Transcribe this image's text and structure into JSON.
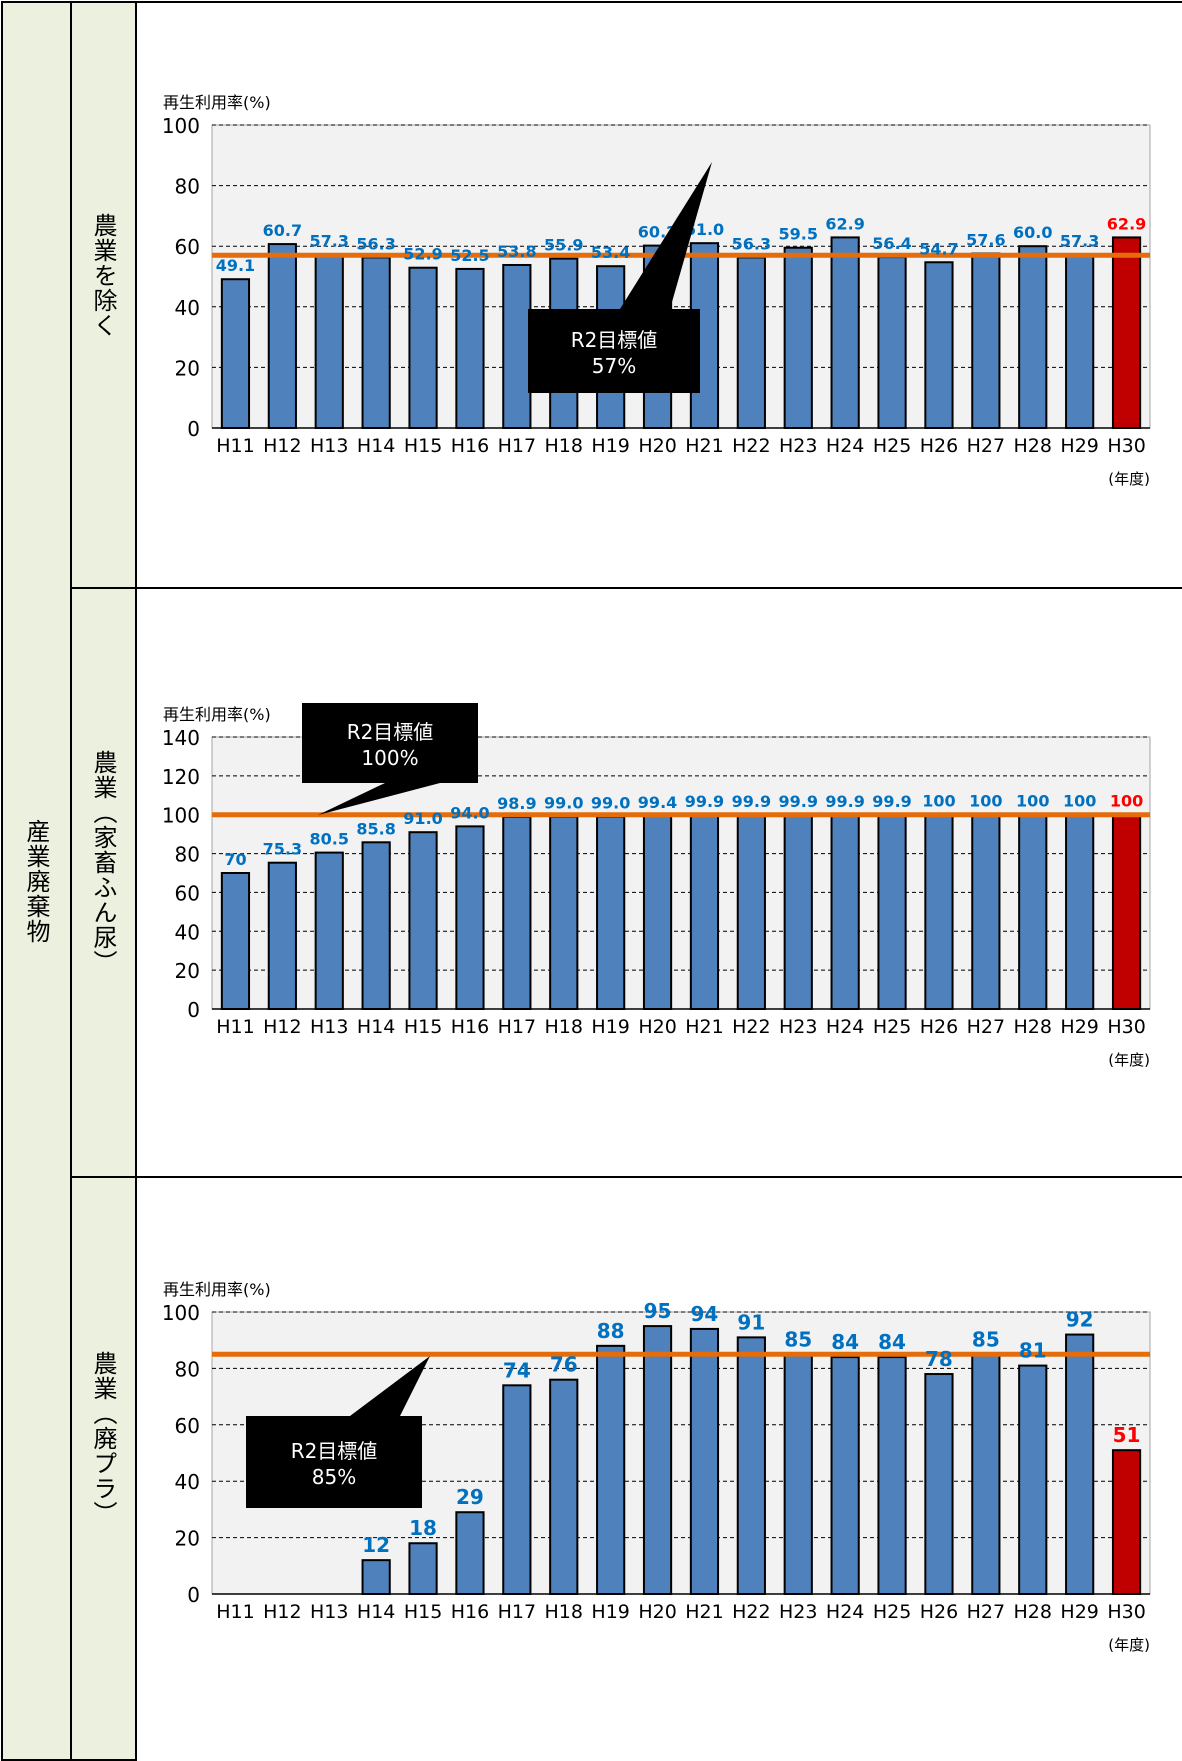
{
  "table": {
    "category_label": "産業廃棄物",
    "rows": [
      {
        "label": "農業を除く"
      },
      {
        "label": "農業（家畜ふん尿）"
      },
      {
        "label": "農業（廃プラ）"
      }
    ]
  },
  "colors": {
    "bar": "#4f81bd",
    "bar_last": "#c00000",
    "target": "#e46c0a",
    "label": "#0070c0",
    "label_last": "#ff0000",
    "plot_bg": "#f2f2f2"
  },
  "chart_data": [
    {
      "type": "bar",
      "ylabel": "再生利用率(%)",
      "xunit": "(年度)",
      "categories": [
        "H11",
        "H12",
        "H13",
        "H14",
        "H15",
        "H16",
        "H17",
        "H18",
        "H19",
        "H20",
        "H21",
        "H22",
        "H23",
        "H24",
        "H25",
        "H26",
        "H27",
        "H28",
        "H29",
        "H30"
      ],
      "values": [
        49.1,
        60.7,
        57.3,
        56.3,
        52.9,
        52.5,
        53.8,
        55.9,
        53.4,
        60.2,
        61.0,
        56.3,
        59.5,
        62.9,
        56.4,
        54.7,
        57.6,
        60.0,
        57.3,
        62.9
      ],
      "value_labels": [
        "49.1",
        "60.7",
        "57.3",
        "56.3",
        "52.9",
        "52.5",
        "53.8",
        "55.9",
        "53.4",
        "60.2",
        "61.0",
        "56.3",
        "59.5",
        "62.9",
        "56.4",
        "54.7",
        "57.6",
        "60.0",
        "57.3",
        "62.9"
      ],
      "ylim": [
        0,
        100
      ],
      "yticks": [
        0,
        20,
        40,
        60,
        80,
        100
      ],
      "target": {
        "value": 57,
        "line1": "R2目標値",
        "line2": "57%"
      }
    },
    {
      "type": "bar",
      "ylabel": "再生利用率(%)",
      "xunit": "(年度)",
      "categories": [
        "H11",
        "H12",
        "H13",
        "H14",
        "H15",
        "H16",
        "H17",
        "H18",
        "H19",
        "H20",
        "H21",
        "H22",
        "H23",
        "H24",
        "H25",
        "H26",
        "H27",
        "H28",
        "H29",
        "H30"
      ],
      "values": [
        70,
        75.3,
        80.5,
        85.8,
        91.0,
        94.0,
        98.9,
        99.0,
        99.0,
        99.4,
        99.9,
        99.9,
        99.9,
        99.9,
        99.9,
        100,
        100,
        100,
        100,
        100
      ],
      "value_labels": [
        "70",
        "75.3",
        "80.5",
        "85.8",
        "91.0",
        "94.0",
        "98.9",
        "99.0",
        "99.0",
        "99.4",
        "99.9",
        "99.9",
        "99.9",
        "99.9",
        "99.9",
        "100",
        "100",
        "100",
        "100",
        "100"
      ],
      "ylim": [
        0,
        140
      ],
      "yticks": [
        0,
        20,
        40,
        60,
        80,
        100,
        120,
        140
      ],
      "target": {
        "value": 100,
        "line1": "R2目標値",
        "line2": "100%"
      }
    },
    {
      "type": "bar",
      "ylabel": "再生利用率(%)",
      "xunit": "(年度)",
      "categories": [
        "H11",
        "H12",
        "H13",
        "H14",
        "H15",
        "H16",
        "H17",
        "H18",
        "H19",
        "H20",
        "H21",
        "H22",
        "H23",
        "H24",
        "H25",
        "H26",
        "H27",
        "H28",
        "H29",
        "H30"
      ],
      "values": [
        null,
        null,
        null,
        12,
        18,
        29,
        74,
        76,
        88,
        95,
        94,
        91,
        85,
        84,
        84,
        78,
        85,
        81,
        92,
        51
      ],
      "value_labels": [
        "",
        "",
        "",
        "12",
        "18",
        "29",
        "74",
        "76",
        "88",
        "95",
        "94",
        "91",
        "85",
        "84",
        "84",
        "78",
        "85",
        "81",
        "92",
        "51"
      ],
      "ylim": [
        0,
        100
      ],
      "yticks": [
        0,
        20,
        40,
        60,
        80,
        100
      ],
      "target": {
        "value": 85,
        "line1": "R2目標値",
        "line2": "85%"
      }
    }
  ]
}
